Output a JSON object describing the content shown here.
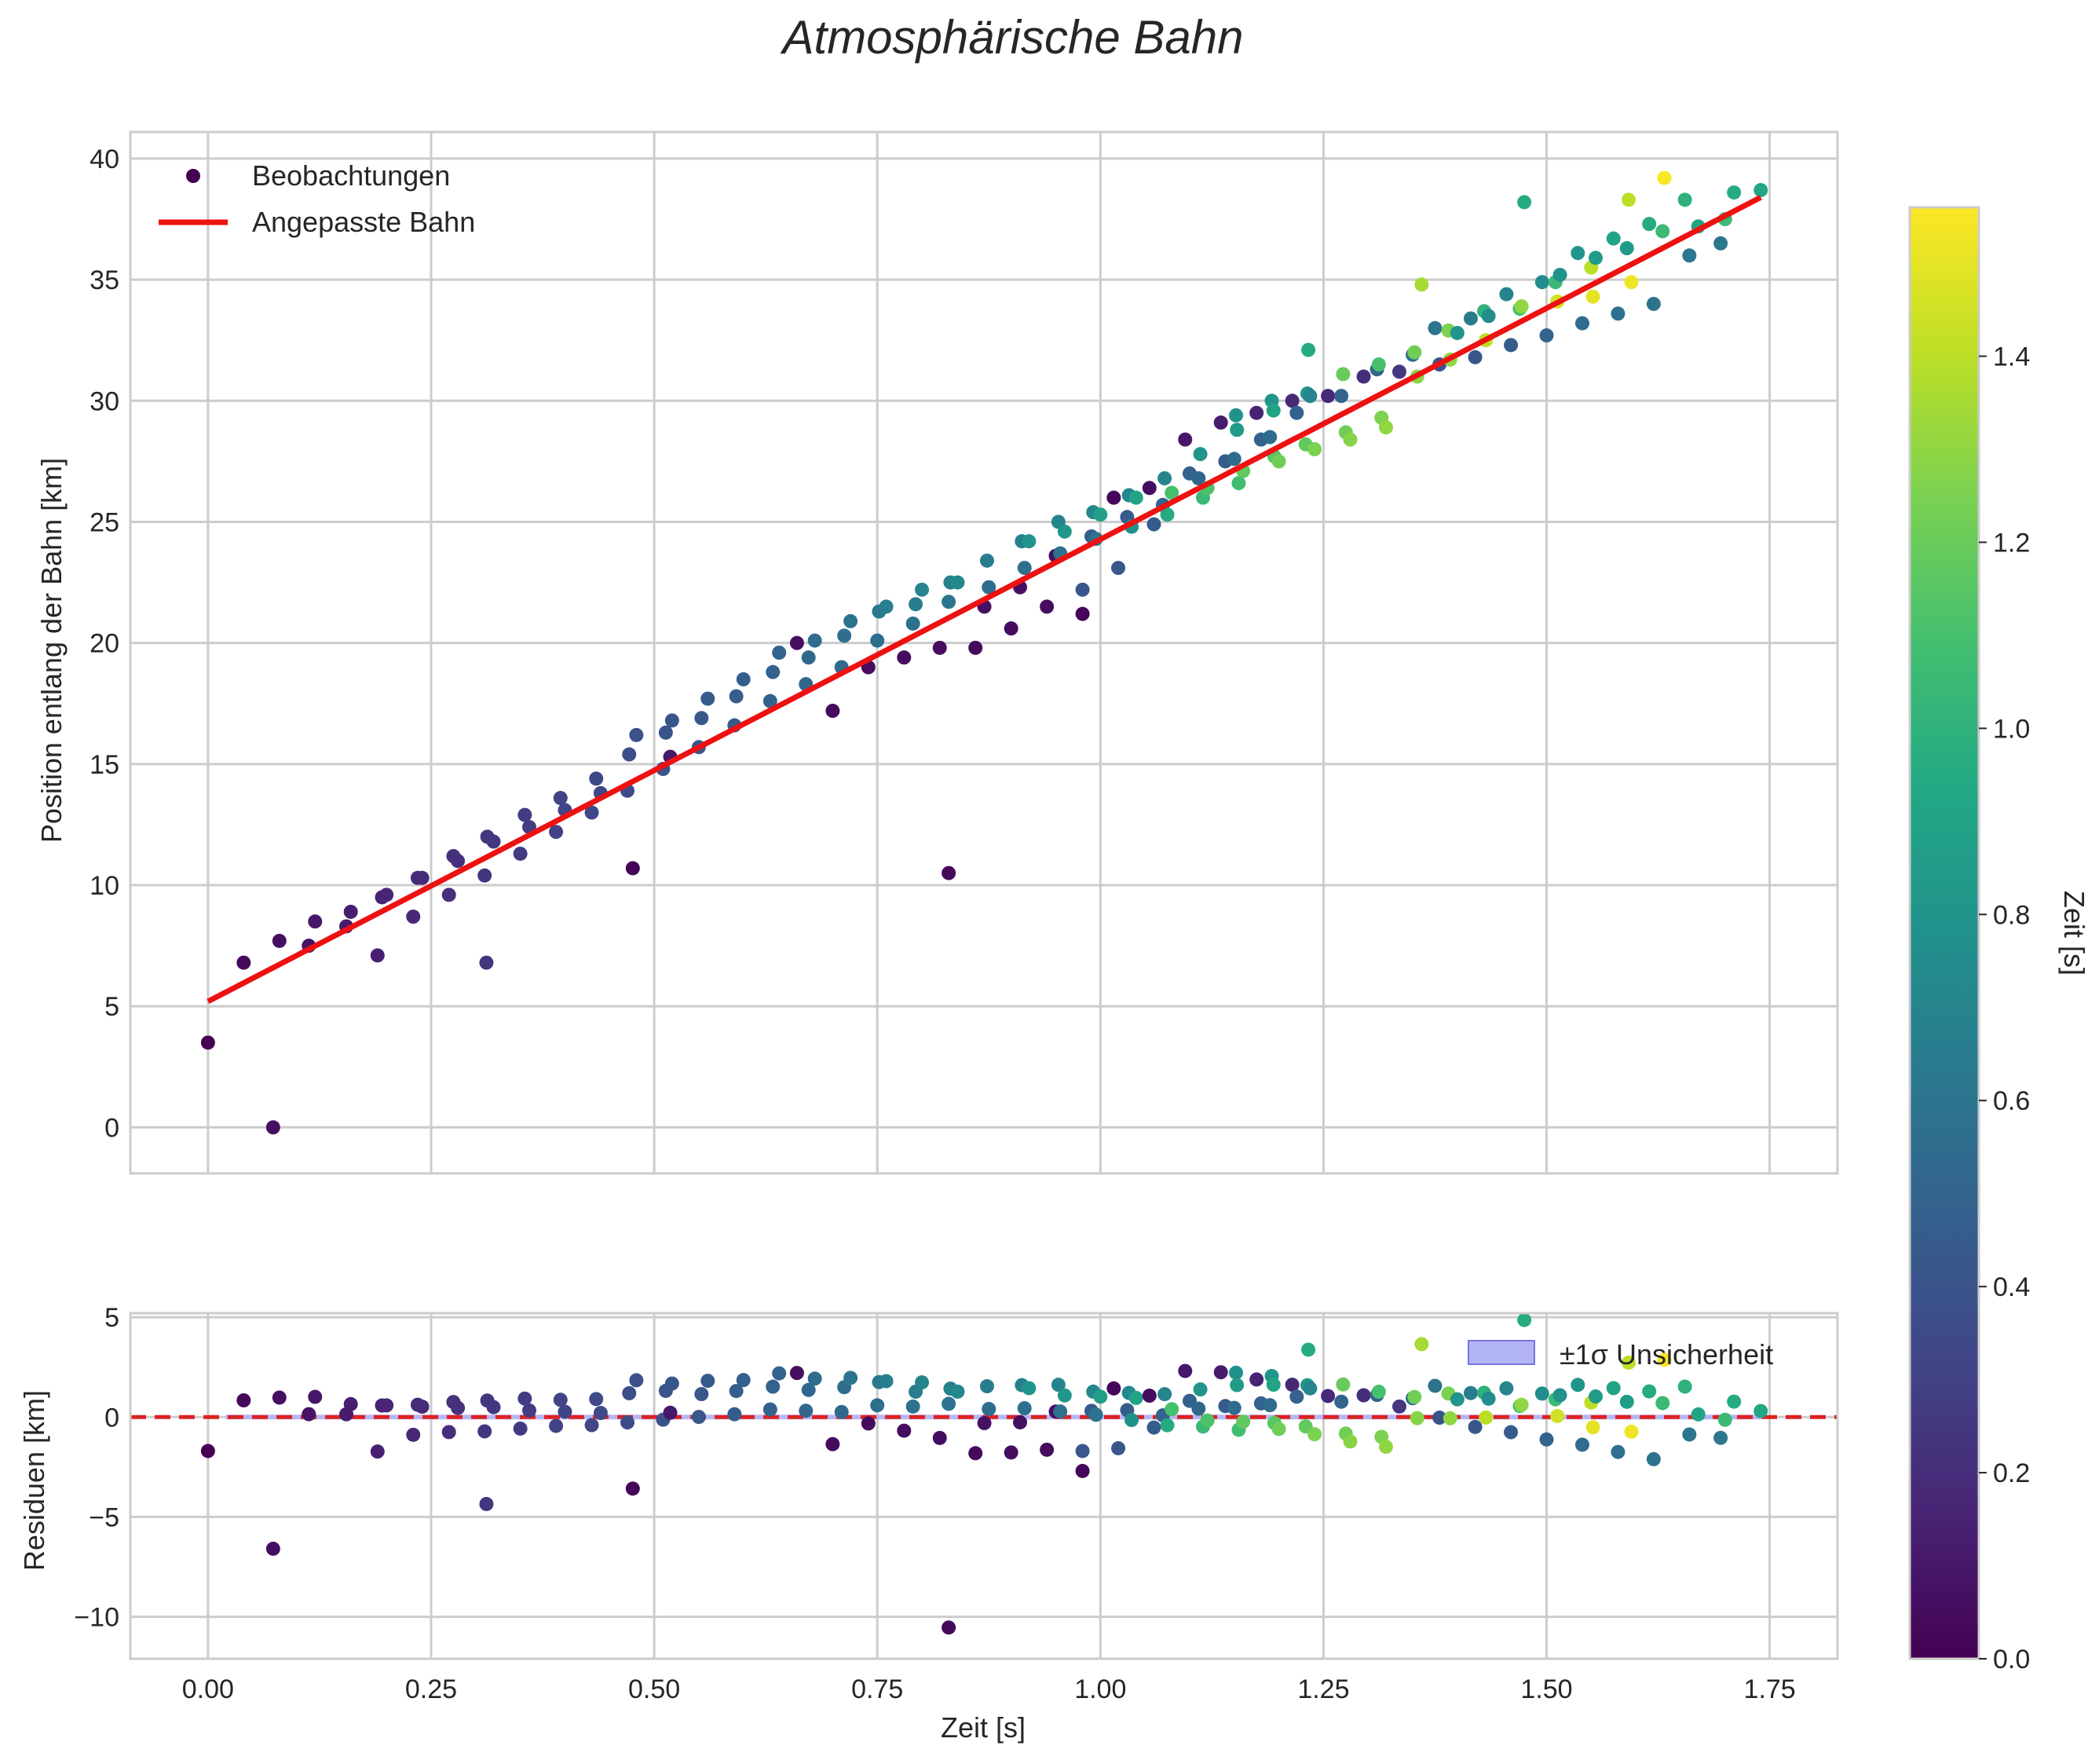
{
  "title": "Atmosphärische Bahn",
  "colors": {
    "fit_line": "#ee1111",
    "zero_line": "#dd2222",
    "band": "#b3b3f7",
    "grid": "#cccccc",
    "frame": "#cccccc"
  },
  "chart_data": [
    {
      "type": "scatter",
      "title": "Atmosphärische Bahn",
      "ylabel": "Position entlang der Bahn [km]",
      "xlabel": "",
      "xlim": [
        -0.087,
        1.826
      ],
      "ylim": [
        -1.9,
        41.1
      ],
      "xticks": [
        0.0,
        0.25,
        0.5,
        0.75,
        1.0,
        1.25,
        1.5,
        1.75
      ],
      "xtick_labels": [
        "0.00",
        "0.25",
        "0.50",
        "0.75",
        "1.00",
        "1.25",
        "1.50",
        "1.75"
      ],
      "yticks": [
        0,
        5,
        10,
        15,
        20,
        25,
        30,
        35,
        40
      ],
      "ytick_labels": [
        "0",
        "5",
        "10",
        "15",
        "20",
        "25",
        "30",
        "35",
        "40"
      ],
      "grid": true,
      "legend": {
        "position": "top-left",
        "entries": [
          "Beobachtungen",
          "Angepasste Bahn"
        ]
      },
      "colormap": "viridis",
      "series": [
        {
          "name": "Beobachtungen",
          "kind": "scatter",
          "color_by": "Zeit [s]",
          "points": [
            [
              0.0,
              3.5,
              0.0
            ],
            [
              0.04,
              6.8,
              0.03
            ],
            [
              0.073,
              0.0,
              0.06
            ],
            [
              0.08,
              7.7,
              0.06
            ],
            [
              0.113,
              7.5,
              0.08
            ],
            [
              0.12,
              8.5,
              0.1
            ],
            [
              0.155,
              8.3,
              0.12
            ],
            [
              0.16,
              8.9,
              0.13
            ],
            [
              0.19,
              7.1,
              0.14
            ],
            [
              0.195,
              9.5,
              0.15
            ],
            [
              0.2,
              9.6,
              0.16
            ],
            [
              0.23,
              8.7,
              0.18
            ],
            [
              0.235,
              10.3,
              0.19
            ],
            [
              0.24,
              10.3,
              0.19
            ],
            [
              0.27,
              9.6,
              0.21
            ],
            [
              0.275,
              11.2,
              0.22
            ],
            [
              0.28,
              11.0,
              0.22
            ],
            [
              0.31,
              10.4,
              0.24
            ],
            [
              0.312,
              6.8,
              0.24
            ],
            [
              0.313,
              12.0,
              0.25
            ],
            [
              0.32,
              11.8,
              0.25
            ],
            [
              0.35,
              11.3,
              0.27
            ],
            [
              0.355,
              12.9,
              0.28
            ],
            [
              0.36,
              12.4,
              0.28
            ],
            [
              0.39,
              12.2,
              0.3
            ],
            [
              0.395,
              13.6,
              0.31
            ],
            [
              0.4,
              13.1,
              0.31
            ],
            [
              0.43,
              13.0,
              0.33
            ],
            [
              0.435,
              14.4,
              0.34
            ],
            [
              0.44,
              13.8,
              0.34
            ],
            [
              0.47,
              13.9,
              0.36
            ],
            [
              0.472,
              15.4,
              0.37
            ],
            [
              0.476,
              10.7,
              0.02
            ],
            [
              0.48,
              16.2,
              0.38
            ],
            [
              0.51,
              14.8,
              0.39
            ],
            [
              0.513,
              16.3,
              0.4
            ],
            [
              0.518,
              15.3,
              0.1
            ],
            [
              0.52,
              16.8,
              0.41
            ],
            [
              0.55,
              15.7,
              0.42
            ],
            [
              0.553,
              16.9,
              0.43
            ],
            [
              0.56,
              17.7,
              0.44
            ],
            [
              0.59,
              16.6,
              0.45
            ],
            [
              0.592,
              17.8,
              0.46
            ],
            [
              0.6,
              18.5,
              0.47
            ],
            [
              0.63,
              17.6,
              0.48
            ],
            [
              0.633,
              18.8,
              0.49
            ],
            [
              0.64,
              19.6,
              0.5
            ],
            [
              0.66,
              20.0,
              0.06
            ],
            [
              0.67,
              18.3,
              0.51
            ],
            [
              0.673,
              19.4,
              0.52
            ],
            [
              0.68,
              20.1,
              0.55
            ],
            [
              0.7,
              17.2,
              0.04
            ],
            [
              0.71,
              19.0,
              0.53
            ],
            [
              0.713,
              20.3,
              0.56
            ],
            [
              0.72,
              20.9,
              0.6
            ],
            [
              0.74,
              19.0,
              0.05
            ],
            [
              0.75,
              20.1,
              0.57
            ],
            [
              0.752,
              21.3,
              0.62
            ],
            [
              0.76,
              21.5,
              0.66
            ],
            [
              0.78,
              19.4,
              0.05
            ],
            [
              0.79,
              20.8,
              0.58
            ],
            [
              0.793,
              21.6,
              0.65
            ],
            [
              0.8,
              22.2,
              0.7
            ],
            [
              0.82,
              19.8,
              0.05
            ],
            [
              0.83,
              21.7,
              0.6
            ],
            [
              0.832,
              22.5,
              0.68
            ],
            [
              0.83,
              10.5,
              0.03
            ],
            [
              0.84,
              22.5,
              0.72
            ],
            [
              0.86,
              19.8,
              0.04
            ],
            [
              0.87,
              21.5,
              0.07
            ],
            [
              0.873,
              23.4,
              0.65
            ],
            [
              0.875,
              22.3,
              0.55
            ],
            [
              0.9,
              20.6,
              0.05
            ],
            [
              0.91,
              22.3,
              0.06
            ],
            [
              0.912,
              24.2,
              0.68
            ],
            [
              0.915,
              23.1,
              0.57
            ],
            [
              0.92,
              24.2,
              0.8
            ],
            [
              0.94,
              21.5,
              0.05
            ],
            [
              0.95,
              23.6,
              0.06
            ],
            [
              0.953,
              25.0,
              0.7
            ],
            [
              0.955,
              23.7,
              0.58
            ],
            [
              0.96,
              24.6,
              0.82
            ],
            [
              0.98,
              21.2,
              0.02
            ],
            [
              0.98,
              22.2,
              0.42
            ],
            [
              0.99,
              24.4,
              0.45
            ],
            [
              0.992,
              25.4,
              0.72
            ],
            [
              0.995,
              24.3,
              0.6
            ],
            [
              1.0,
              25.3,
              0.88
            ],
            [
              1.015,
              26.0,
              0.02
            ],
            [
              1.02,
              23.1,
              0.42
            ],
            [
              1.03,
              25.2,
              0.45
            ],
            [
              1.032,
              26.1,
              0.72
            ],
            [
              1.035,
              24.8,
              0.78
            ],
            [
              1.04,
              26.0,
              0.9
            ],
            [
              1.055,
              26.4,
              0.05
            ],
            [
              1.06,
              24.9,
              0.45
            ],
            [
              1.07,
              25.7,
              0.5
            ],
            [
              1.072,
              26.8,
              0.7
            ],
            [
              1.075,
              25.3,
              0.95
            ],
            [
              1.08,
              26.2,
              1.1
            ],
            [
              1.095,
              28.4,
              0.1
            ],
            [
              1.1,
              27.0,
              0.48
            ],
            [
              1.11,
              26.8,
              0.52
            ],
            [
              1.112,
              27.8,
              0.8
            ],
            [
              1.115,
              26.0,
              1.05
            ],
            [
              1.12,
              26.4,
              1.12
            ],
            [
              1.135,
              29.1,
              0.12
            ],
            [
              1.14,
              27.5,
              0.45
            ],
            [
              1.15,
              27.6,
              0.55
            ],
            [
              1.152,
              29.4,
              0.78
            ],
            [
              1.153,
              28.8,
              0.85
            ],
            [
              1.155,
              26.6,
              1.08
            ],
            [
              1.16,
              27.1,
              1.18
            ],
            [
              1.175,
              29.5,
              0.15
            ],
            [
              1.18,
              28.4,
              0.48
            ],
            [
              1.19,
              28.5,
              0.55
            ],
            [
              1.192,
              30.0,
              0.8
            ],
            [
              1.194,
              29.6,
              0.9
            ],
            [
              1.195,
              27.7,
              1.15
            ],
            [
              1.2,
              27.5,
              1.22
            ],
            [
              1.215,
              30.0,
              0.18
            ],
            [
              1.22,
              29.5,
              0.48
            ],
            [
              1.23,
              28.2,
              1.18
            ],
            [
              1.232,
              30.3,
              0.82
            ],
            [
              1.233,
              32.1,
              0.95
            ],
            [
              1.235,
              30.2,
              0.7
            ],
            [
              1.24,
              28.0,
              1.25
            ],
            [
              1.255,
              30.2,
              0.18
            ],
            [
              1.27,
              30.2,
              0.5
            ],
            [
              1.272,
              31.1,
              1.2
            ],
            [
              1.275,
              28.7,
              1.22
            ],
            [
              1.28,
              28.4,
              1.28
            ],
            [
              1.295,
              31.0,
              0.2
            ],
            [
              1.31,
              31.3,
              0.5
            ],
            [
              1.312,
              31.5,
              1.1
            ],
            [
              1.315,
              29.3,
              1.25
            ],
            [
              1.32,
              28.9,
              1.3
            ],
            [
              1.335,
              31.2,
              0.25
            ],
            [
              1.35,
              31.9,
              0.55
            ],
            [
              1.352,
              32.0,
              1.22
            ],
            [
              1.355,
              31.0,
              1.28
            ],
            [
              1.36,
              34.8,
              1.35
            ],
            [
              1.375,
              33.0,
              0.6
            ],
            [
              1.38,
              31.5,
              0.4
            ],
            [
              1.39,
              32.9,
              1.25
            ],
            [
              1.392,
              31.7,
              1.3
            ],
            [
              1.4,
              32.8,
              0.8
            ],
            [
              1.415,
              33.4,
              0.65
            ],
            [
              1.42,
              31.8,
              0.42
            ],
            [
              1.43,
              33.7,
              1.0
            ],
            [
              1.432,
              32.5,
              1.4
            ],
            [
              1.435,
              33.5,
              0.75
            ],
            [
              1.455,
              34.4,
              0.7
            ],
            [
              1.46,
              32.3,
              0.45
            ],
            [
              1.47,
              33.8,
              1.1
            ],
            [
              1.472,
              33.9,
              1.3
            ],
            [
              1.475,
              38.2,
              0.95
            ],
            [
              1.495,
              34.9,
              0.75
            ],
            [
              1.5,
              32.7,
              0.5
            ],
            [
              1.51,
              34.9,
              1.05
            ],
            [
              1.512,
              34.1,
              1.45
            ],
            [
              1.515,
              35.2,
              0.78
            ],
            [
              1.535,
              36.1,
              0.8
            ],
            [
              1.54,
              33.2,
              0.55
            ],
            [
              1.55,
              35.5,
              1.4
            ],
            [
              1.552,
              34.3,
              1.5
            ],
            [
              1.555,
              35.9,
              0.85
            ],
            [
              1.575,
              36.7,
              0.9
            ],
            [
              1.58,
              33.6,
              0.58
            ],
            [
              1.59,
              36.3,
              0.85
            ],
            [
              1.592,
              38.3,
              1.4
            ],
            [
              1.595,
              34.9,
              1.52
            ],
            [
              1.615,
              37.3,
              0.95
            ],
            [
              1.62,
              34.0,
              0.6
            ],
            [
              1.63,
              37.0,
              1.05
            ],
            [
              1.632,
              39.2,
              1.55
            ],
            [
              1.655,
              38.3,
              1.0
            ],
            [
              1.66,
              36.0,
              0.62
            ],
            [
              1.67,
              37.2,
              0.9
            ],
            [
              1.695,
              36.5,
              0.62
            ],
            [
              1.7,
              37.5,
              1.05
            ],
            [
              1.71,
              38.6,
              0.95
            ],
            [
              1.74,
              38.7,
              0.92
            ]
          ]
        },
        {
          "name": "Angepasste Bahn",
          "kind": "line",
          "x": [
            0.0,
            1.74
          ],
          "y": [
            5.2,
            38.4
          ]
        }
      ]
    },
    {
      "type": "scatter",
      "title": "",
      "ylabel": "Residuen [km]",
      "xlabel": "Zeit [s]",
      "xlim": [
        -0.087,
        1.826
      ],
      "ylim": [
        -12.1,
        5.2
      ],
      "xticks": [
        0.0,
        0.25,
        0.5,
        0.75,
        1.0,
        1.25,
        1.5,
        1.75
      ],
      "xtick_labels": [
        "0.00",
        "0.25",
        "0.50",
        "0.75",
        "1.00",
        "1.25",
        "1.50",
        "1.75"
      ],
      "yticks": [
        -10,
        -5,
        0,
        5
      ],
      "ytick_labels": [
        "−10",
        "−5",
        "0",
        "5"
      ],
      "grid": true,
      "legend": {
        "position": "top-right",
        "entries": [
          "±1σ Unsicherheit"
        ]
      },
      "reference_line": {
        "y": 0,
        "style": "dashed"
      },
      "band": {
        "label": "±1σ Unsicherheit",
        "y_low": -0.12,
        "y_high": 0.12
      }
    }
  ],
  "colorbar": {
    "label": "Zeit [s]",
    "range": [
      0.0,
      1.56
    ],
    "ticks": [
      0.0,
      0.2,
      0.4,
      0.6,
      0.8,
      1.0,
      1.2,
      1.4
    ],
    "tick_labels": [
      "0.0",
      "0.2",
      "0.4",
      "0.6",
      "0.8",
      "1.0",
      "1.2",
      "1.4"
    ]
  }
}
